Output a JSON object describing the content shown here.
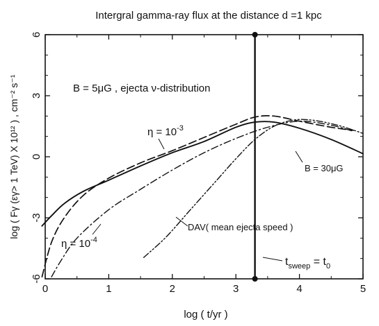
{
  "chart_data": {
    "type": "line",
    "title": "Intergral gamma-ray flux at the distance d =1 kpc",
    "xlabel": "log ( t/yr )",
    "ylabel": "log ( Fγ (εγ> 1 TeV) X 10¹² ) , cm⁻² s⁻¹",
    "xlim": [
      0,
      5
    ],
    "ylim": [
      -6,
      6
    ],
    "xticks": [
      0,
      1,
      2,
      3,
      4,
      5
    ],
    "yticks": [
      -6,
      -3,
      0,
      3,
      6
    ],
    "xtick_labels": [
      "0",
      "1",
      "2",
      "3",
      "4",
      "5"
    ],
    "ytick_labels": [
      "-6",
      "-3",
      "0",
      "3",
      "6"
    ],
    "grid": false,
    "annotation_main": "B = 5μG ,  ejecta ν-distribution",
    "series": [
      {
        "name": "η = 10⁻³",
        "style": "dashed",
        "points": [
          [
            -0.05,
            -5.9
          ],
          [
            0.1,
            -4.2
          ],
          [
            0.3,
            -3.0
          ],
          [
            0.6,
            -1.9
          ],
          [
            1.0,
            -1.05
          ],
          [
            1.5,
            -0.3
          ],
          [
            2.0,
            0.3
          ],
          [
            2.5,
            0.95
          ],
          [
            3.0,
            1.6
          ],
          [
            3.3,
            1.95
          ],
          [
            3.6,
            2.0
          ],
          [
            4.0,
            1.75
          ],
          [
            4.5,
            1.45
          ],
          [
            4.85,
            1.3
          ]
        ]
      },
      {
        "name": "",
        "style": "solid",
        "points": [
          [
            -0.05,
            -3.4
          ],
          [
            0.1,
            -2.9
          ],
          [
            0.3,
            -2.3
          ],
          [
            0.6,
            -1.7
          ],
          [
            1.0,
            -1.15
          ],
          [
            1.5,
            -0.45
          ],
          [
            2.0,
            0.2
          ],
          [
            2.5,
            0.75
          ],
          [
            3.0,
            1.45
          ],
          [
            3.3,
            1.7
          ],
          [
            3.6,
            1.7
          ],
          [
            4.0,
            1.4
          ],
          [
            4.5,
            0.85
          ],
          [
            5.0,
            0.15
          ]
        ]
      },
      {
        "name": "η = 10⁻⁴",
        "style": "dash-dot",
        "points": [
          [
            0.1,
            -5.9
          ],
          [
            0.25,
            -5.1
          ],
          [
            0.5,
            -4.0
          ],
          [
            1.0,
            -2.6
          ],
          [
            1.5,
            -1.6
          ],
          [
            2.0,
            -0.65
          ],
          [
            2.5,
            0.2
          ],
          [
            3.0,
            0.9
          ],
          [
            3.5,
            1.45
          ],
          [
            4.0,
            1.75
          ],
          [
            4.5,
            1.55
          ],
          [
            4.85,
            1.25
          ]
        ]
      },
      {
        "name": "DAV( mean ejecta speed )",
        "style": "dash-dot-dot",
        "points": [
          [
            1.55,
            -4.95
          ],
          [
            1.9,
            -3.95
          ],
          [
            2.3,
            -2.55
          ],
          [
            2.7,
            -1.15
          ],
          [
            3.0,
            -0.1
          ],
          [
            3.3,
            0.85
          ],
          [
            3.6,
            1.5
          ],
          [
            3.9,
            1.8
          ],
          [
            4.2,
            1.8
          ],
          [
            4.6,
            1.55
          ],
          [
            5.0,
            1.15
          ]
        ]
      }
    ],
    "vertical_line": {
      "x": 3.3,
      "y_range": [
        -6,
        6
      ],
      "label": "t_sweep = t_0",
      "label_main": "t",
      "label_sub1": "sweep",
      "label_eq": " = t",
      "label_sub2": "0"
    },
    "annotations": {
      "eta3": {
        "text_main": "η = 10",
        "text_exp": "-3"
      },
      "eta4": {
        "text_main": "η = 10",
        "text_exp": "-4"
      },
      "dav": {
        "text": "DAV( mean ejecta speed )"
      },
      "b30": {
        "text": "B = 30μG"
      }
    }
  }
}
